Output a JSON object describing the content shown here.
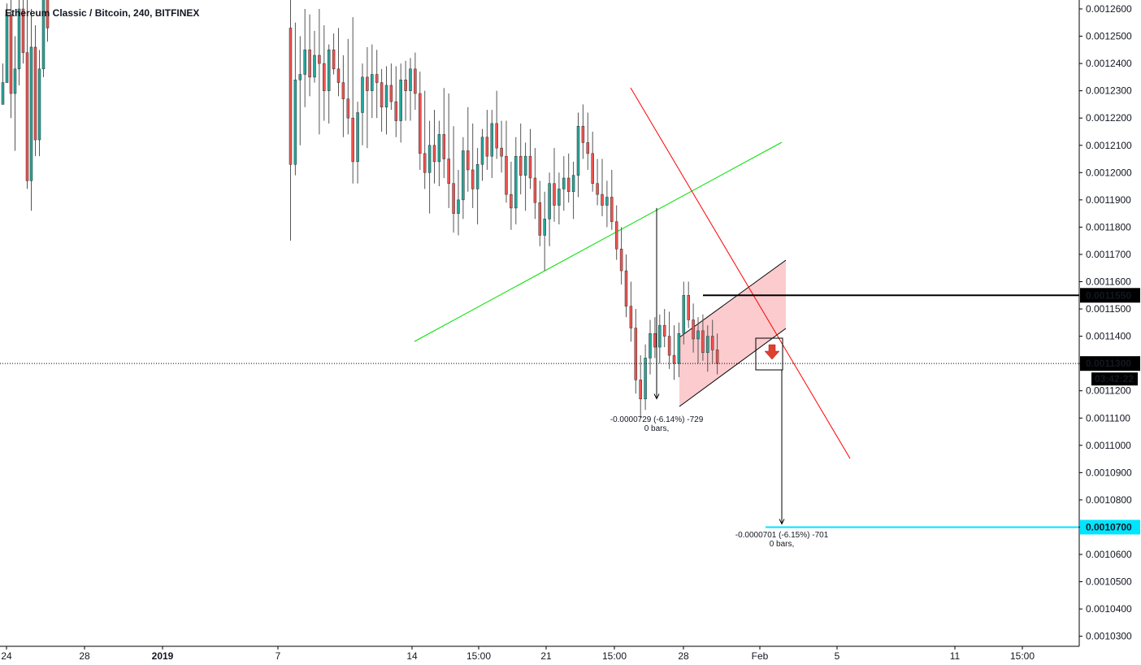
{
  "chart_data": {
    "type": "candlestick",
    "title": "Ethereum Classic / Bitcoin, 240, BITFINEX",
    "price_axis": {
      "min": 0.00102,
      "max": 0.00127,
      "ticks": [
        "0.0012600",
        "0.0012500",
        "0.0012400",
        "0.0012300",
        "0.0012200",
        "0.0012100",
        "0.0012000",
        "0.0011900",
        "0.0011800",
        "0.0011700",
        "0.0011600",
        "0.0011500",
        "0.0011400",
        "0.0011300",
        "0.0011200",
        "0.0011100",
        "0.0011000",
        "0.0010900",
        "0.0010800",
        "0.0010700",
        "0.0010600",
        "0.0010500",
        "0.0010400",
        "0.0010300"
      ],
      "tick_values": [
        0.00126,
        0.00125,
        0.00124,
        0.00123,
        0.00122,
        0.00121,
        0.0012,
        0.00119,
        0.00118,
        0.00117,
        0.00116,
        0.00115,
        0.00114,
        0.00113,
        0.00112,
        0.00111,
        0.0011,
        0.00109,
        0.00108,
        0.00107,
        0.00106,
        0.00105,
        0.00104,
        0.00103
      ]
    },
    "time_axis": {
      "labels": [
        "24",
        "28",
        "2019",
        "7",
        "14",
        "15:00",
        "21",
        "15:00",
        "28",
        "Feb",
        "5",
        "11",
        "15:00"
      ]
    },
    "current_price": {
      "label": "0.0011300",
      "value": 0.00113,
      "countdown": "03:42:22"
    },
    "marked_levels": [
      {
        "label": "0.0011550",
        "value": 0.001155,
        "color": "#000000"
      },
      {
        "label": "0.0010700",
        "value": 0.00107,
        "color": "#00e5ff"
      }
    ],
    "measurements": [
      {
        "text": "-0.0000729 (-6.14%) -729",
        "bars": "0 bars,",
        "from": 0.001187,
        "to": 0.0011141
      },
      {
        "text": "-0.0000701 (-6.15%) -701",
        "bars": "0 bars,",
        "from": 0.00114,
        "to": 0.00107
      }
    ],
    "colors": {
      "up": "#26a69a",
      "down": "#ef5350",
      "channel_fill": "#f7a1a5",
      "support": "#00e000",
      "resistance": "#ff0000",
      "level_target": "#00e5ff"
    },
    "candles_ohlc": [
      [
        0.001225,
        0.00124,
        0.00123,
        0.001233
      ],
      [
        0.001233,
        0.001262,
        0.001252,
        0.001258
      ],
      [
        0.001258,
        0.00128,
        0.00122,
        0.001229
      ],
      [
        0.001229,
        0.00125,
        0.001208,
        0.001238
      ],
      [
        0.001238,
        0.00127,
        0.001232,
        0.00126
      ],
      [
        0.00126,
        0.00128,
        0.00124,
        0.001244
      ],
      [
        0.001244,
        0.00127,
        0.001194,
        0.001197
      ],
      [
        0.001197,
        0.00126,
        0.001186,
        0.001246
      ],
      [
        0.001246,
        0.001254,
        0.001206,
        0.001212
      ],
      [
        0.001212,
        0.001245,
        0.001206,
        0.001238
      ],
      [
        0.001238,
        0.00127,
        0.001235,
        0.001265
      ],
      [
        0.001265,
        0.00128,
        0.001248,
        0.001253
      ],
      [
        0.001253,
        0.00128,
        0.001175,
        0.001203
      ],
      [
        0.001203,
        0.001255,
        0.001199,
        0.001234
      ],
      [
        0.001234,
        0.00125,
        0.00121,
        0.001236
      ],
      [
        0.001236,
        0.00126,
        0.001224,
        0.001245
      ],
      [
        0.001245,
        0.001258,
        0.001228,
        0.001235
      ],
      [
        0.001235,
        0.001252,
        0.001233,
        0.001243
      ],
      [
        0.001243,
        0.00126,
        0.001214,
        0.00124
      ],
      [
        0.00124,
        0.001254,
        0.001219,
        0.00123
      ],
      [
        0.00123,
        0.001247,
        0.001218,
        0.001245
      ],
      [
        0.001245,
        0.001251,
        0.001236,
        0.001238
      ],
      [
        0.001238,
        0.001253,
        0.001228,
        0.001233
      ],
      [
        0.001233,
        0.001243,
        0.001213,
        0.001227
      ],
      [
        0.001227,
        0.001249,
        0.001214,
        0.00122
      ],
      [
        0.00122,
        0.001257,
        0.001196,
        0.001204
      ],
      [
        0.001204,
        0.001226,
        0.001196,
        0.001222
      ],
      [
        0.001222,
        0.00124,
        0.00121,
        0.001235
      ],
      [
        0.001235,
        0.001246,
        0.001209,
        0.00123
      ],
      [
        0.00123,
        0.001247,
        0.00122,
        0.001236
      ],
      [
        0.001236,
        0.001245,
        0.00122,
        0.001233
      ],
      [
        0.001233,
        0.001238,
        0.001215,
        0.001224
      ],
      [
        0.001224,
        0.001239,
        0.001214,
        0.001232
      ],
      [
        0.001232,
        0.00124,
        0.001223,
        0.001226
      ],
      [
        0.001226,
        0.001239,
        0.001213,
        0.001219
      ],
      [
        0.001219,
        0.00124,
        0.001211,
        0.001234
      ],
      [
        0.001234,
        0.001241,
        0.001219,
        0.00123
      ],
      [
        0.00123,
        0.001242,
        0.001219,
        0.001238
      ],
      [
        0.001238,
        0.001244,
        0.001223,
        0.001229
      ],
      [
        0.001229,
        0.001237,
        0.001201,
        0.001207
      ],
      [
        0.001207,
        0.00123,
        0.001194,
        0.0012
      ],
      [
        0.0012,
        0.001219,
        0.001185,
        0.00121
      ],
      [
        0.00121,
        0.001223,
        0.001196,
        0.001204
      ],
      [
        0.001204,
        0.001219,
        0.001195,
        0.001214
      ],
      [
        0.001214,
        0.001231,
        0.001198,
        0.001205
      ],
      [
        0.001205,
        0.001229,
        0.001187,
        0.001196
      ],
      [
        0.001196,
        0.001217,
        0.001178,
        0.001185
      ],
      [
        0.001185,
        0.001201,
        0.001177,
        0.00119
      ],
      [
        0.00119,
        0.001213,
        0.001183,
        0.001208
      ],
      [
        0.001208,
        0.001224,
        0.001193,
        0.001201
      ],
      [
        0.001201,
        0.001218,
        0.001187,
        0.001194
      ],
      [
        0.001194,
        0.001209,
        0.001181,
        0.001203
      ],
      [
        0.001203,
        0.001216,
        0.001197,
        0.001213
      ],
      [
        0.001213,
        0.001223,
        0.001201,
        0.001206
      ],
      [
        0.001206,
        0.001223,
        0.001198,
        0.001218
      ],
      [
        0.001218,
        0.00123,
        0.001205,
        0.001209
      ],
      [
        0.001209,
        0.001219,
        0.0012,
        0.001206
      ],
      [
        0.001206,
        0.001219,
        0.001189,
        0.001192
      ],
      [
        0.001192,
        0.001204,
        0.001179,
        0.001187
      ],
      [
        0.001187,
        0.001213,
        0.001181,
        0.001206
      ],
      [
        0.001206,
        0.001218,
        0.001192,
        0.001199
      ],
      [
        0.001199,
        0.001211,
        0.001186,
        0.001206
      ],
      [
        0.001206,
        0.001216,
        0.001194,
        0.001198
      ],
      [
        0.001198,
        0.001209,
        0.001183,
        0.001189
      ],
      [
        0.001189,
        0.001197,
        0.001173,
        0.001177
      ],
      [
        0.001177,
        0.001193,
        0.001164,
        0.001183
      ],
      [
        0.001183,
        0.0012,
        0.001173,
        0.001196
      ],
      [
        0.001196,
        0.001209,
        0.001182,
        0.001188
      ],
      [
        0.001188,
        0.0012,
        0.001181,
        0.001194
      ],
      [
        0.001194,
        0.001206,
        0.001186,
        0.001198
      ],
      [
        0.001198,
        0.001207,
        0.001189,
        0.001193
      ],
      [
        0.001193,
        0.001204,
        0.001183,
        0.001199
      ],
      [
        0.001199,
        0.001222,
        0.001191,
        0.001217
      ],
      [
        0.001217,
        0.001225,
        0.001205,
        0.001211
      ],
      [
        0.001211,
        0.001222,
        0.001201,
        0.001207
      ],
      [
        0.001207,
        0.001215,
        0.001193,
        0.001196
      ],
      [
        0.001196,
        0.001205,
        0.001188,
        0.001192
      ],
      [
        0.001192,
        0.001205,
        0.001184,
        0.001188
      ],
      [
        0.001188,
        0.001197,
        0.00118,
        0.001191
      ],
      [
        0.001191,
        0.001201,
        0.001179,
        0.001182
      ],
      [
        0.001182,
        0.001188,
        0.001168,
        0.001172
      ],
      [
        0.001172,
        0.00118,
        0.001159,
        0.001164
      ],
      [
        0.001164,
        0.00117,
        0.001147,
        0.001151
      ],
      [
        0.001151,
        0.00116,
        0.001138,
        0.001143
      ],
      [
        0.001143,
        0.00115,
        0.001119,
        0.001124
      ],
      [
        0.001124,
        0.001133,
        0.00111,
        0.001117
      ],
      [
        0.001117,
        0.001137,
        0.001113,
        0.001132
      ],
      [
        0.001132,
        0.001146,
        0.001126,
        0.001141
      ],
      [
        0.001141,
        0.001147,
        0.001132,
        0.001136
      ],
      [
        0.001136,
        0.001148,
        0.00113,
        0.001144
      ],
      [
        0.001144,
        0.00115,
        0.001136,
        0.00114
      ],
      [
        0.00114,
        0.001149,
        0.001128,
        0.001133
      ],
      [
        0.001133,
        0.001144,
        0.001124,
        0.00113
      ],
      [
        0.00113,
        0.001145,
        0.001125,
        0.001141
      ],
      [
        0.001141,
        0.00116,
        0.001137,
        0.001155
      ],
      [
        0.001155,
        0.00116,
        0.001143,
        0.001146
      ],
      [
        0.001146,
        0.001152,
        0.001134,
        0.001139
      ],
      [
        0.001139,
        0.001147,
        0.00113,
        0.001142
      ],
      [
        0.001142,
        0.001148,
        0.001131,
        0.001134
      ],
      [
        0.001134,
        0.001144,
        0.001127,
        0.00114
      ],
      [
        0.00114,
        0.001146,
        0.00113,
        0.001135
      ],
      [
        0.001135,
        0.001141,
        0.001126,
        0.00113
      ]
    ]
  }
}
